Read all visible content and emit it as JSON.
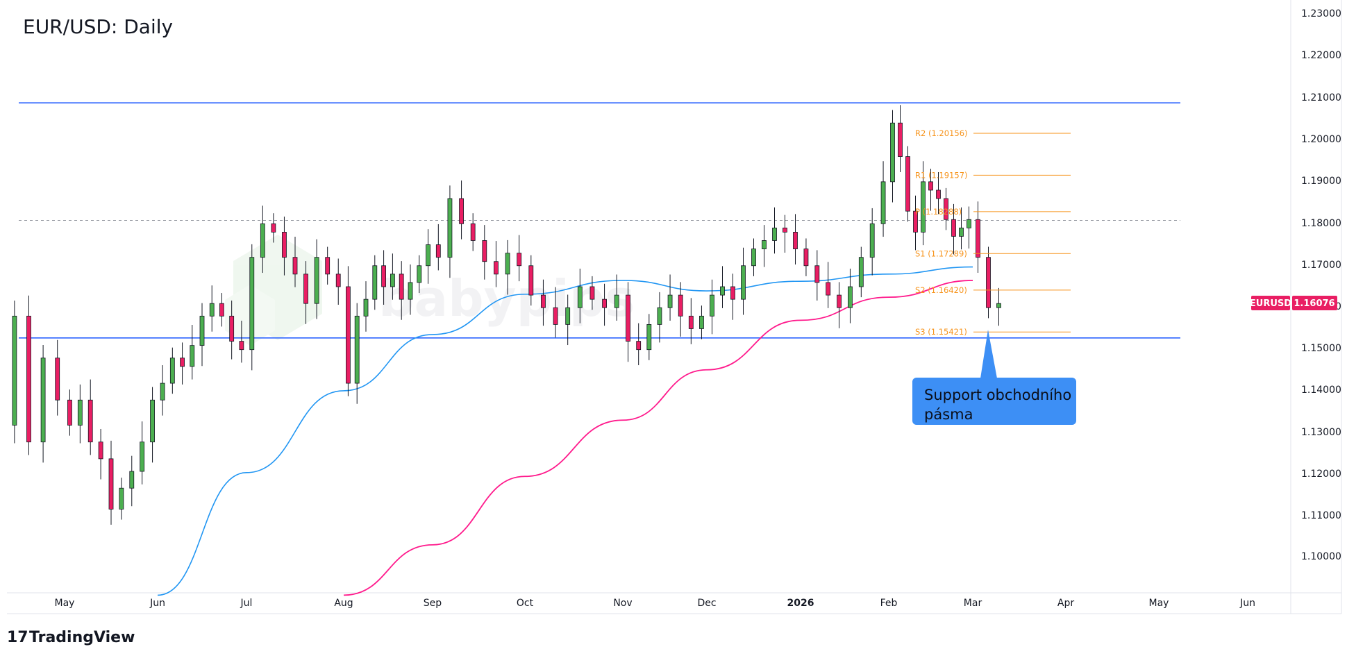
{
  "chart_data": {
    "type": "candlestick",
    "title": "EUR/USD: Daily",
    "symbol": "EURUSD",
    "last_price": "1.16076",
    "y_range": [
      1.0915,
      1.2318
    ],
    "y_ticks": [
      "1.23000",
      "1.22000",
      "1.21000",
      "1.20000",
      "1.19000",
      "1.18000",
      "1.17000",
      "1.16000",
      "1.15000",
      "1.14000",
      "1.13000",
      "1.12000",
      "1.11000",
      "1.10000"
    ],
    "x_labels": [
      "May",
      "Jun",
      "Jul",
      "Aug",
      "Sep",
      "Oct",
      "Nov",
      "Dec",
      "2026",
      "Feb",
      "Mar",
      "Apr",
      "May",
      "Jun"
    ],
    "range_lines": [
      1.2088,
      1.1528
    ],
    "dashed_level": 1.1808,
    "pivots": [
      {
        "label": "R2 (1.20156)",
        "value": 1.20156
      },
      {
        "label": "R1 (1.19157)",
        "value": 1.19157
      },
      {
        "label": "P (1.18288)",
        "value": 1.18288
      },
      {
        "label": "S1 (1.17289)",
        "value": 1.17289
      },
      {
        "label": "S2 (1.16420)",
        "value": 1.1642
      },
      {
        "label": "S3 (1.15421)",
        "value": 1.15421
      }
    ],
    "ma_blue_anchors": [
      [
        "Jun",
        1.0915
      ],
      [
        "Jul",
        1.1207
      ],
      [
        "Aug",
        1.1402
      ],
      [
        "Sep",
        1.1536
      ],
      [
        "Oct",
        1.1632
      ],
      [
        "Nov",
        1.1665
      ],
      [
        "Dec",
        1.164
      ],
      [
        "2026",
        1.1663
      ],
      [
        "Feb",
        1.168
      ],
      [
        "Mar",
        1.1697
      ]
    ],
    "ma_pink_anchors": [
      [
        "Aug",
        1.0915
      ],
      [
        "Sep",
        1.1035
      ],
      [
        "Oct",
        1.1198
      ],
      [
        "Nov",
        1.1332
      ],
      [
        "Dec",
        1.1452
      ],
      [
        "2026",
        1.157
      ],
      [
        "Feb",
        1.1625
      ],
      [
        "Mar",
        1.1665
      ]
    ],
    "ohlc_anchors": [
      [
        "Apr",
        1.132
      ],
      [
        "Apr",
        1.158
      ],
      [
        "Apr",
        1.128
      ],
      [
        "Apr",
        1.148
      ],
      [
        "Apr",
        1.138
      ],
      [
        "May",
        1.132
      ],
      [
        "May",
        1.138
      ],
      [
        "May",
        1.128
      ],
      [
        "May",
        1.124
      ],
      [
        "May",
        1.112
      ],
      [
        "May",
        1.117
      ],
      [
        "May",
        1.121
      ],
      [
        "May",
        1.128
      ],
      [
        "May",
        1.138
      ],
      [
        "Jun",
        1.142
      ],
      [
        "Jun",
        1.148
      ],
      [
        "Jun",
        1.146
      ],
      [
        "Jun",
        1.151
      ],
      [
        "Jun",
        1.158
      ],
      [
        "Jun",
        1.161
      ],
      [
        "Jun",
        1.158
      ],
      [
        "Jun",
        1.152
      ],
      [
        "Jun",
        1.15
      ],
      [
        "Jul",
        1.172
      ],
      [
        "Jul",
        1.18
      ],
      [
        "Jul",
        1.178
      ],
      [
        "Jul",
        1.172
      ],
      [
        "Jul",
        1.168
      ],
      [
        "Jul",
        1.161
      ],
      [
        "Jul",
        1.172
      ],
      [
        "Jul",
        1.168
      ],
      [
        "Jul",
        1.165
      ],
      [
        "Aug",
        1.142
      ],
      [
        "Aug",
        1.158
      ],
      [
        "Aug",
        1.162
      ],
      [
        "Aug",
        1.17
      ],
      [
        "Aug",
        1.165
      ],
      [
        "Aug",
        1.168
      ],
      [
        "Aug",
        1.162
      ],
      [
        "Aug",
        1.166
      ],
      [
        "Aug",
        1.17
      ],
      [
        "Aug",
        1.175
      ],
      [
        "Sep",
        1.172
      ],
      [
        "Sep",
        1.186
      ],
      [
        "Sep",
        1.18
      ],
      [
        "Sep",
        1.176
      ],
      [
        "Sep",
        1.171
      ],
      [
        "Sep",
        1.168
      ],
      [
        "Sep",
        1.173
      ],
      [
        "Sep",
        1.17
      ],
      [
        "Oct",
        1.163
      ],
      [
        "Oct",
        1.16
      ],
      [
        "Oct",
        1.156
      ],
      [
        "Oct",
        1.16
      ],
      [
        "Oct",
        1.165
      ],
      [
        "Oct",
        1.162
      ],
      [
        "Oct",
        1.16
      ],
      [
        "Oct",
        1.163
      ],
      [
        "Nov",
        1.152
      ],
      [
        "Nov",
        1.15
      ],
      [
        "Nov",
        1.156
      ],
      [
        "Nov",
        1.16
      ],
      [
        "Nov",
        1.163
      ],
      [
        "Nov",
        1.158
      ],
      [
        "Nov",
        1.155
      ],
      [
        "Nov",
        1.158
      ],
      [
        "Dec",
        1.163
      ],
      [
        "Dec",
        1.165
      ],
      [
        "Dec",
        1.162
      ],
      [
        "Dec",
        1.17
      ],
      [
        "Dec",
        1.174
      ],
      [
        "Dec",
        1.176
      ],
      [
        "Dec",
        1.179
      ],
      [
        "Dec",
        1.178
      ],
      [
        "Dec",
        1.174
      ],
      [
        "2026",
        1.17
      ],
      [
        "2026",
        1.166
      ],
      [
        "2026",
        1.163
      ],
      [
        "2026",
        1.16
      ],
      [
        "2026",
        1.165
      ],
      [
        "2026",
        1.172
      ],
      [
        "2026",
        1.18
      ],
      [
        "2026",
        1.19
      ],
      [
        "Feb",
        1.204
      ],
      [
        "Feb",
        1.196
      ],
      [
        "Feb",
        1.183
      ],
      [
        "Feb",
        1.178
      ],
      [
        "Feb",
        1.19
      ],
      [
        "Feb",
        1.188
      ],
      [
        "Feb",
        1.186
      ],
      [
        "Feb",
        1.181
      ],
      [
        "Feb",
        1.177
      ],
      [
        "Feb",
        1.179
      ],
      [
        "Feb",
        1.181
      ],
      [
        "Mar",
        1.172
      ],
      [
        "Mar",
        1.16
      ],
      [
        "Mar",
        1.161
      ],
      [
        "Mar",
        1.16
      ]
    ],
    "annotation": {
      "text_line1": "Support obchodního",
      "text_line2": "pásma",
      "target_value": 1.1542
    }
  },
  "watermark": {
    "brand": "babypips"
  },
  "footer": {
    "logo_text": "TradingView",
    "logo_mark": "17"
  },
  "colors": {
    "up": "#4caf50",
    "down": "#e91e63",
    "blue_line": "#2962ff",
    "ma_blue": "#2196f3",
    "ma_pink": "#ff1a8c",
    "pivot": "#f7931a",
    "callout": "#3d8ff5",
    "badge": "#e91e63"
  }
}
